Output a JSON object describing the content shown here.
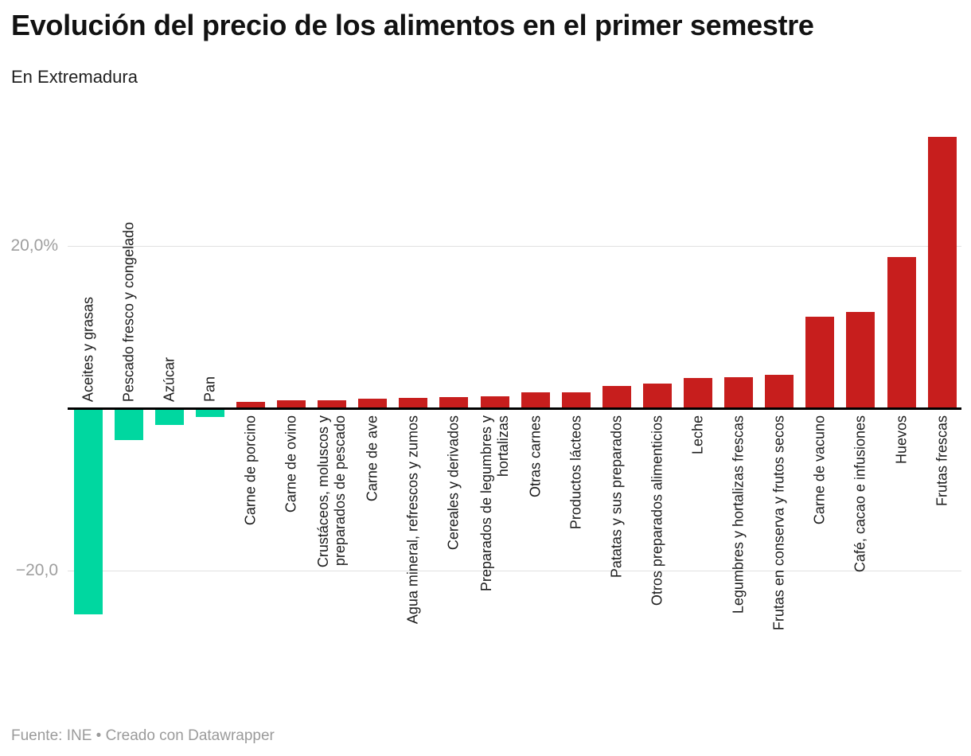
{
  "chart_data": {
    "type": "bar",
    "title": "Evolución del precio de los alimentos en el primer semestre",
    "subtitle": "En Extremadura",
    "source_note": "Fuente: INE • Creado con Datawrapper",
    "unit": "%",
    "ylim": [
      -27,
      35
    ],
    "grid": "horizontal",
    "legend": "none",
    "y_axis": {
      "ticks": [
        {
          "label": "20,0%",
          "value": 20
        },
        {
          "label": "−20,0",
          "value": -20
        }
      ]
    },
    "colors": {
      "negative": "#00d7a0",
      "positive": "#c71e1d",
      "baseline": "#000000",
      "gridline": "#e0e0e0"
    },
    "categories": [
      "Aceites y grasas",
      "Pescado fresco y congelado",
      "Azúcar",
      "Pan",
      "Carne de porcino",
      "Carne de ovino",
      "Crustáceos, moluscos y\npreparados de pescado",
      "Carne de ave",
      "Agua mineral, refrescos y zumos",
      "Cereales y derivados",
      "Preparados de legumbres y\nhortalizas",
      "Otras carnes",
      "Productos lácteos",
      "Patatas y sus preparados",
      "Otros preparados alimenticios",
      "Leche",
      "Legumbres y hortalizas frescas",
      "Frutas en conserva y frutos secos",
      "Carne de vacuno",
      "Café, cacao e infusiones",
      "Huevos",
      "Frutas frescas"
    ],
    "values": [
      -25.4,
      -3.9,
      -2.1,
      -1.1,
      0.8,
      1.0,
      1.0,
      1.2,
      1.3,
      1.4,
      1.5,
      2.0,
      2.0,
      2.7,
      3.0,
      3.7,
      3.8,
      4.1,
      11.3,
      11.9,
      18.6,
      33.4
    ]
  }
}
